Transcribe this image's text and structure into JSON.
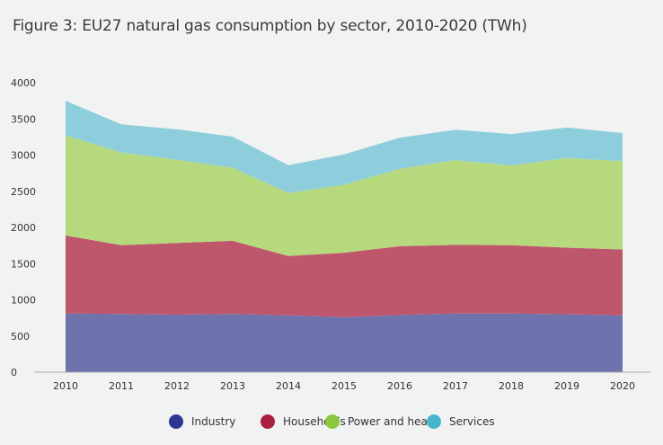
{
  "chart_data": {
    "type": "area",
    "stacked": true,
    "title": "Figure 3: EU27 natural gas consumption by sector, 2010-2020 (TWh)",
    "xlabel": "",
    "ylabel": "",
    "x": [
      "2010",
      "2011",
      "2012",
      "2013",
      "2014",
      "2015",
      "2016",
      "2017",
      "2018",
      "2019",
      "2020"
    ],
    "ylim": [
      0,
      4000
    ],
    "yticks": [
      0,
      500,
      1000,
      1500,
      2000,
      2500,
      3000,
      3500,
      4000
    ],
    "grid": false,
    "legend_position": "bottom",
    "series": [
      {
        "name": "Industry",
        "color": "#6e72ad",
        "legend_color": "#2e3592",
        "values": [
          810,
          805,
          795,
          805,
          785,
          760,
          790,
          810,
          810,
          800,
          785
        ]
      },
      {
        "name": "Households",
        "color": "#bf576c",
        "legend_color": "#a91e3f",
        "values": [
          1080,
          950,
          990,
          1010,
          820,
          890,
          950,
          950,
          945,
          920,
          910
        ]
      },
      {
        "name": "Power and heat",
        "color": "#b7d97d",
        "legend_color": "#8dc63f",
        "values": [
          1380,
          1280,
          1150,
          1010,
          870,
          940,
          1070,
          1170,
          1100,
          1240,
          1220
        ]
      },
      {
        "name": "Services",
        "color": "#8ecedc",
        "legend_color": "#46b4cc",
        "values": [
          480,
          390,
          420,
          430,
          385,
          420,
          430,
          420,
          435,
          420,
          390
        ]
      }
    ]
  }
}
